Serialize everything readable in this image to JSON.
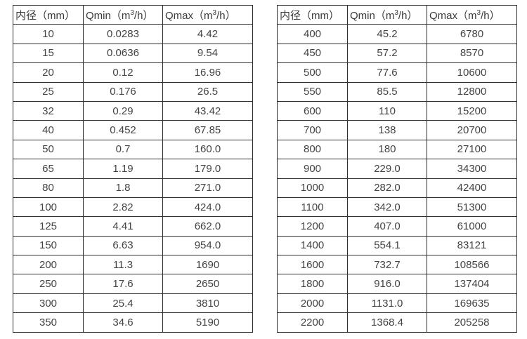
{
  "colors": {
    "background": "#ffffff",
    "text": "#3f3f3f",
    "border": "#2e2e2e"
  },
  "tables": [
    {
      "name": "flow-table-small-diameters",
      "headers": [
        "内径（mm）",
        "Qmin（m³/h）",
        "Qmax（m³/h）"
      ],
      "rows": [
        [
          "10",
          "0.0283",
          "4.42"
        ],
        [
          "15",
          "0.0636",
          "9.54"
        ],
        [
          "20",
          "0.12",
          "16.96"
        ],
        [
          "25",
          "0.176",
          "26.5"
        ],
        [
          "32",
          "0.29",
          "43.42"
        ],
        [
          "40",
          "0.452",
          "67.85"
        ],
        [
          "50",
          "0.7",
          "160.0"
        ],
        [
          "65",
          "1.19",
          "179.0"
        ],
        [
          "80",
          "1.8",
          "271.0"
        ],
        [
          "100",
          "2.82",
          "424.0"
        ],
        [
          "125",
          "4.41",
          "662.0"
        ],
        [
          "150",
          "6.63",
          "954.0"
        ],
        [
          "200",
          "11.3",
          "1690"
        ],
        [
          "250",
          "17.6",
          "2650"
        ],
        [
          "300",
          "25.4",
          "3810"
        ],
        [
          "350",
          "34.6",
          "5190"
        ]
      ]
    },
    {
      "name": "flow-table-large-diameters",
      "headers": [
        "内径（mm）",
        "Qmin（m³/h）",
        "Qmax（m³/h）"
      ],
      "rows": [
        [
          "400",
          "45.2",
          "6780"
        ],
        [
          "450",
          "57.2",
          "8570"
        ],
        [
          "500",
          "77.6",
          "10600"
        ],
        [
          "550",
          "85.5",
          "12800"
        ],
        [
          "600",
          "110",
          "15200"
        ],
        [
          "700",
          "138",
          "20700"
        ],
        [
          "800",
          "180",
          "27100"
        ],
        [
          "900",
          "229.0",
          "34300"
        ],
        [
          "1000",
          "282.0",
          "42400"
        ],
        [
          "1100",
          "342.0",
          "51300"
        ],
        [
          "1200",
          "407.0",
          "61000"
        ],
        [
          "1400",
          "554.1",
          "83121"
        ],
        [
          "1600",
          "732.7",
          "108566"
        ],
        [
          "1800",
          "916.0",
          "137404"
        ],
        [
          "2000",
          "1131.0",
          "169635"
        ],
        [
          "2200",
          "1368.4",
          "205258"
        ]
      ]
    }
  ]
}
